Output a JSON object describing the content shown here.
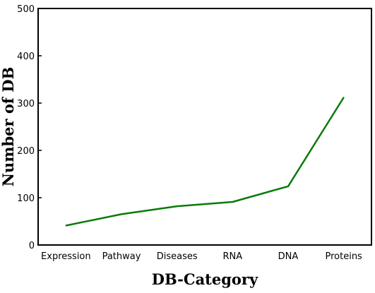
{
  "chart_data": {
    "type": "line",
    "title": "",
    "xlabel": "DB-Category",
    "ylabel": "Number of DB",
    "categories": [
      "Expression",
      "Pathway",
      "Diseases",
      "RNA",
      "DNA",
      "Proteins"
    ],
    "series": [
      {
        "values": [
          41,
          65,
          82,
          91,
          124,
          312
        ]
      }
    ],
    "ylim": [
      0,
      500
    ],
    "yticks": [
      0,
      100,
      200,
      300,
      400,
      500
    ],
    "grid": false,
    "legend": "none",
    "colors": {
      "line": "#0a7a0a",
      "axis": "#000000",
      "text": "#000000"
    }
  }
}
